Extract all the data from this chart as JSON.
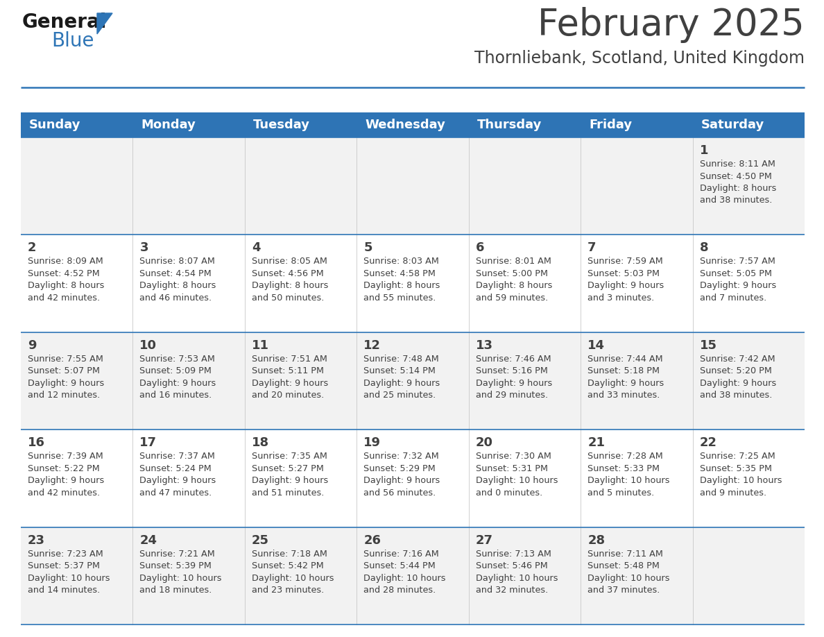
{
  "title": "February 2025",
  "subtitle": "Thornliebank, Scotland, United Kingdom",
  "header_bg": "#2E74B5",
  "header_text": "#FFFFFF",
  "cell_bg_odd": "#F2F2F2",
  "cell_bg_even": "#FFFFFF",
  "divider_color": "#2E75B6",
  "text_color": "#404040",
  "day_number_color": "#404040",
  "days_of_week": [
    "Sunday",
    "Monday",
    "Tuesday",
    "Wednesday",
    "Thursday",
    "Friday",
    "Saturday"
  ],
  "weeks": [
    [
      {
        "day": null,
        "info": null
      },
      {
        "day": null,
        "info": null
      },
      {
        "day": null,
        "info": null
      },
      {
        "day": null,
        "info": null
      },
      {
        "day": null,
        "info": null
      },
      {
        "day": null,
        "info": null
      },
      {
        "day": "1",
        "info": "Sunrise: 8:11 AM\nSunset: 4:50 PM\nDaylight: 8 hours\nand 38 minutes."
      }
    ],
    [
      {
        "day": "2",
        "info": "Sunrise: 8:09 AM\nSunset: 4:52 PM\nDaylight: 8 hours\nand 42 minutes."
      },
      {
        "day": "3",
        "info": "Sunrise: 8:07 AM\nSunset: 4:54 PM\nDaylight: 8 hours\nand 46 minutes."
      },
      {
        "day": "4",
        "info": "Sunrise: 8:05 AM\nSunset: 4:56 PM\nDaylight: 8 hours\nand 50 minutes."
      },
      {
        "day": "5",
        "info": "Sunrise: 8:03 AM\nSunset: 4:58 PM\nDaylight: 8 hours\nand 55 minutes."
      },
      {
        "day": "6",
        "info": "Sunrise: 8:01 AM\nSunset: 5:00 PM\nDaylight: 8 hours\nand 59 minutes."
      },
      {
        "day": "7",
        "info": "Sunrise: 7:59 AM\nSunset: 5:03 PM\nDaylight: 9 hours\nand 3 minutes."
      },
      {
        "day": "8",
        "info": "Sunrise: 7:57 AM\nSunset: 5:05 PM\nDaylight: 9 hours\nand 7 minutes."
      }
    ],
    [
      {
        "day": "9",
        "info": "Sunrise: 7:55 AM\nSunset: 5:07 PM\nDaylight: 9 hours\nand 12 minutes."
      },
      {
        "day": "10",
        "info": "Sunrise: 7:53 AM\nSunset: 5:09 PM\nDaylight: 9 hours\nand 16 minutes."
      },
      {
        "day": "11",
        "info": "Sunrise: 7:51 AM\nSunset: 5:11 PM\nDaylight: 9 hours\nand 20 minutes."
      },
      {
        "day": "12",
        "info": "Sunrise: 7:48 AM\nSunset: 5:14 PM\nDaylight: 9 hours\nand 25 minutes."
      },
      {
        "day": "13",
        "info": "Sunrise: 7:46 AM\nSunset: 5:16 PM\nDaylight: 9 hours\nand 29 minutes."
      },
      {
        "day": "14",
        "info": "Sunrise: 7:44 AM\nSunset: 5:18 PM\nDaylight: 9 hours\nand 33 minutes."
      },
      {
        "day": "15",
        "info": "Sunrise: 7:42 AM\nSunset: 5:20 PM\nDaylight: 9 hours\nand 38 minutes."
      }
    ],
    [
      {
        "day": "16",
        "info": "Sunrise: 7:39 AM\nSunset: 5:22 PM\nDaylight: 9 hours\nand 42 minutes."
      },
      {
        "day": "17",
        "info": "Sunrise: 7:37 AM\nSunset: 5:24 PM\nDaylight: 9 hours\nand 47 minutes."
      },
      {
        "day": "18",
        "info": "Sunrise: 7:35 AM\nSunset: 5:27 PM\nDaylight: 9 hours\nand 51 minutes."
      },
      {
        "day": "19",
        "info": "Sunrise: 7:32 AM\nSunset: 5:29 PM\nDaylight: 9 hours\nand 56 minutes."
      },
      {
        "day": "20",
        "info": "Sunrise: 7:30 AM\nSunset: 5:31 PM\nDaylight: 10 hours\nand 0 minutes."
      },
      {
        "day": "21",
        "info": "Sunrise: 7:28 AM\nSunset: 5:33 PM\nDaylight: 10 hours\nand 5 minutes."
      },
      {
        "day": "22",
        "info": "Sunrise: 7:25 AM\nSunset: 5:35 PM\nDaylight: 10 hours\nand 9 minutes."
      }
    ],
    [
      {
        "day": "23",
        "info": "Sunrise: 7:23 AM\nSunset: 5:37 PM\nDaylight: 10 hours\nand 14 minutes."
      },
      {
        "day": "24",
        "info": "Sunrise: 7:21 AM\nSunset: 5:39 PM\nDaylight: 10 hours\nand 18 minutes."
      },
      {
        "day": "25",
        "info": "Sunrise: 7:18 AM\nSunset: 5:42 PM\nDaylight: 10 hours\nand 23 minutes."
      },
      {
        "day": "26",
        "info": "Sunrise: 7:16 AM\nSunset: 5:44 PM\nDaylight: 10 hours\nand 28 minutes."
      },
      {
        "day": "27",
        "info": "Sunrise: 7:13 AM\nSunset: 5:46 PM\nDaylight: 10 hours\nand 32 minutes."
      },
      {
        "day": "28",
        "info": "Sunrise: 7:11 AM\nSunset: 5:48 PM\nDaylight: 10 hours\nand 37 minutes."
      },
      {
        "day": null,
        "info": null
      }
    ]
  ],
  "logo_general_color": "#1a1a1a",
  "logo_blue_color": "#2E75B6",
  "title_fontsize": 38,
  "subtitle_fontsize": 17,
  "header_fontsize": 13,
  "day_number_fontsize": 13,
  "info_fontsize": 9.2
}
